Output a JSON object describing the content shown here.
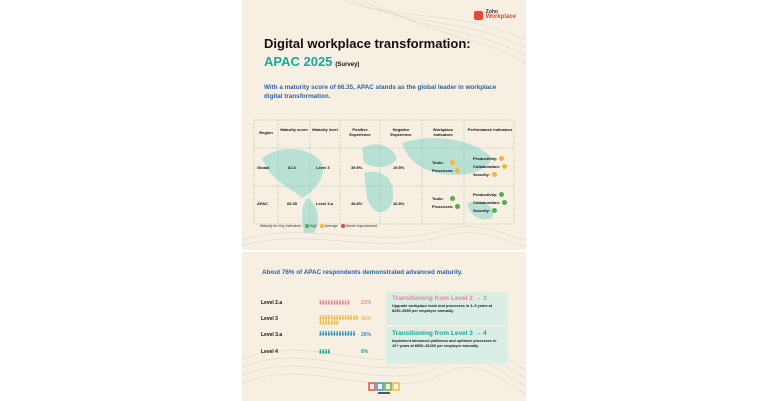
{
  "logo": {
    "brand": "Zoho",
    "product": "Workplace"
  },
  "header": {
    "title_line1": "Digital workplace transformation:",
    "title_line2": "APAC 2025",
    "title_suffix": "(Survey)",
    "intro": "With a maturity score of 66.35, APAC stands as the global leader in workplace digital transformation."
  },
  "table": {
    "columns": [
      "Region",
      "Maturity score",
      "Maturity level",
      "Positive Experience",
      "Negative Experience",
      "Workplace indicators",
      "Performance indicators"
    ],
    "rows": [
      {
        "region": "Global",
        "score": "62.3",
        "level": "Level 3",
        "positive": "39.5%",
        "negative": "19.5%",
        "workplace": [
          {
            "label": "Tools:",
            "status": "average"
          },
          {
            "label": "Processes:",
            "status": "average"
          }
        ],
        "performance": [
          {
            "label": "Productivity:",
            "status": "average"
          },
          {
            "label": "Collaboration:",
            "status": "average"
          },
          {
            "label": "Security:",
            "status": "average"
          }
        ]
      },
      {
        "region": "APAC",
        "score": "66.35",
        "level": "Level 3.a",
        "positive": "46.8%",
        "negative": "16.8%",
        "workplace": [
          {
            "label": "Tools:",
            "status": "high"
          },
          {
            "label": "Processes:",
            "status": "high"
          }
        ],
        "performance": [
          {
            "label": "Productivity:",
            "status": "high"
          },
          {
            "label": "Collaboration:",
            "status": "high"
          },
          {
            "label": "Security:",
            "status": "high"
          }
        ]
      }
    ],
    "legend": {
      "prefix": "Maturity for Key Indicators:",
      "high": "High",
      "average": "Average",
      "needs": "Needs Improvement"
    }
  },
  "maturity": {
    "headline": "About 76% of APAC respondents demonstrated advanced maturity.",
    "levels": [
      {
        "label": "Level 2.a",
        "percent": "21%",
        "value": 21,
        "color": "#e8829a"
      },
      {
        "label": "Level 3",
        "percent": "41%",
        "value": 41,
        "color": "#f2b833"
      },
      {
        "label": "Level 3.a",
        "percent": "26%",
        "value": 26,
        "color": "#2f8fbf"
      },
      {
        "label": "Level 4",
        "percent": "8%",
        "value": 8,
        "color": "#1aa79b"
      }
    ],
    "transitions": [
      {
        "title": "Transitioning from Level 2 → 3",
        "body": "Upgrade workplace tools and processes in 3–5 years at $250–$500 per employee annually.",
        "color": "#e8829a"
      },
      {
        "title": "Transitioning from  Level 3 → 4",
        "body": "Implement advanced platforms and optimize processes in 10+ years at $500–$1000 per employee annually.",
        "color": "#1aa79b"
      }
    ]
  },
  "colors": {
    "high": "#4caf50",
    "average": "#f2b833",
    "needs": "#e2483b",
    "accent": "#1aa79b",
    "blue": "#2c5fa8"
  }
}
